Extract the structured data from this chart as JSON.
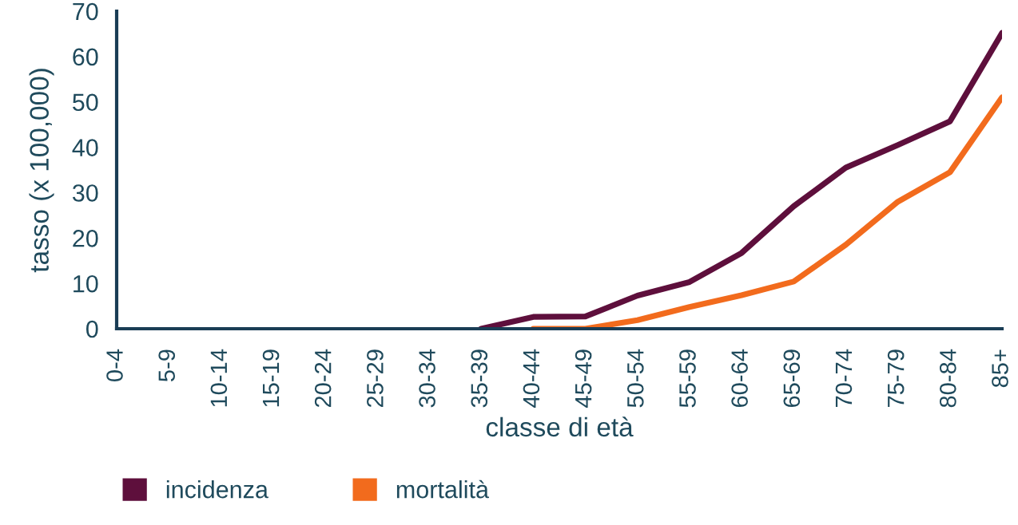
{
  "chart_data": {
    "type": "line",
    "xlabel": "classe di età",
    "ylabel": "tasso (x 100,000)",
    "categories": [
      "0-4",
      "5-9",
      "10-14",
      "15-19",
      "20-24",
      "25-29",
      "30-34",
      "35-39",
      "40-44",
      "45-49",
      "50-54",
      "55-59",
      "60-64",
      "65-69",
      "70-74",
      "75-79",
      "80-84",
      "85+"
    ],
    "ylim": [
      0,
      70
    ],
    "yticks": [
      0,
      10,
      20,
      30,
      40,
      50,
      60,
      70
    ],
    "grid": false,
    "legend": "bottom left",
    "marker": "none",
    "line_style": "solid",
    "series": [
      {
        "name": "incidenza",
        "color": "#5e0f3c",
        "values": [
          null,
          null,
          null,
          null,
          null,
          null,
          null,
          0,
          2.6,
          2.7,
          7.3,
          10.3,
          16.7,
          27,
          35.5,
          40.5,
          45.7,
          65.2
        ]
      },
      {
        "name": "mortalità",
        "color": "#f26b1d",
        "values": [
          null,
          null,
          null,
          null,
          null,
          null,
          null,
          null,
          0,
          0,
          1.9,
          4.8,
          7.4,
          10.4,
          18.5,
          28,
          34.5,
          51
        ]
      }
    ]
  }
}
